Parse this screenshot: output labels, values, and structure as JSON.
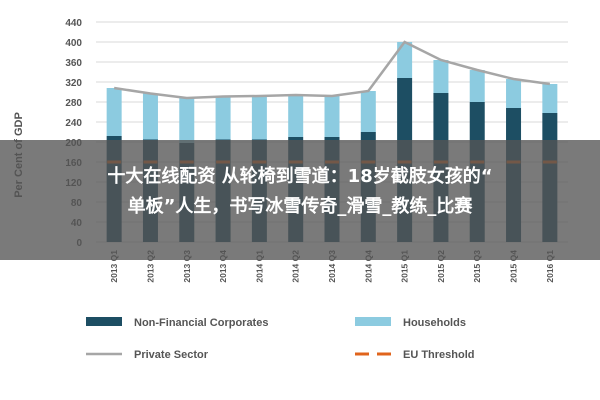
{
  "chart_data": {
    "type": "bar",
    "ylabel": "Per Cent of GDP",
    "ylim": [
      0,
      440
    ],
    "yticks": [
      0,
      40,
      80,
      120,
      160,
      200,
      240,
      280,
      320,
      360,
      400,
      440
    ],
    "categories": [
      "2013 Q1",
      "2013 Q2",
      "2013 Q3",
      "2013 Q4",
      "2014 Q1",
      "2014 Q2",
      "2014 Q3",
      "2014 Q4",
      "2015 Q1",
      "2015 Q2",
      "2015 Q3",
      "2015 Q4",
      "2016 Q1"
    ],
    "series": [
      {
        "name": "Non-Financial Corporates",
        "kind": "bar-stack",
        "color": "#1d4e63",
        "values": [
          212,
          205,
          198,
          205,
          205,
          210,
          210,
          220,
          328,
          298,
          280,
          268,
          258
        ]
      },
      {
        "name": "Households",
        "kind": "bar-stack",
        "color": "#8ccbe0",
        "values": [
          96,
          92,
          90,
          86,
          87,
          84,
          82,
          82,
          72,
          66,
          64,
          58,
          58
        ]
      },
      {
        "name": "Private Sector",
        "kind": "line",
        "color": "#a6a6a6",
        "values": [
          308,
          297,
          288,
          291,
          292,
          294,
          292,
          302,
          400,
          364,
          344,
          326,
          316
        ]
      },
      {
        "name": "EU Threshold",
        "kind": "dash",
        "color": "#e0641c",
        "values": [
          160,
          160,
          160,
          160,
          160,
          160,
          160,
          160,
          160,
          160,
          160,
          160,
          160
        ]
      }
    ],
    "grid": true,
    "legend": "bottom"
  },
  "overlay": {
    "line1": "十大在线配资 从轮椅到雪道：18岁截肢女孩的“",
    "line2": "单板”人生，书写冰雪传奇_滑雪_教练_比赛"
  }
}
